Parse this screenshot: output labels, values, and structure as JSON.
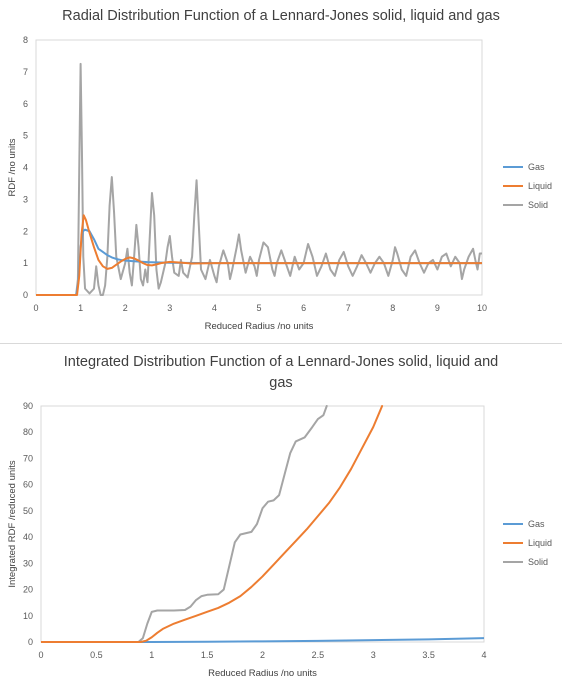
{
  "chart_data": [
    {
      "type": "line",
      "title": "Radial Distribution Function of a Lennard-Jones solid, liquid and gas",
      "xlabel": "Reduced Radius /no units",
      "ylabel": "RDF /no units",
      "xlim": [
        0,
        10
      ],
      "ylim": [
        0,
        8
      ],
      "xticks": [
        0,
        1,
        2,
        3,
        4,
        5,
        6,
        7,
        8,
        9,
        10
      ],
      "yticks": [
        0,
        1,
        2,
        3,
        4,
        5,
        6,
        7,
        8
      ],
      "grid": "horizontal",
      "legend": "right",
      "series": [
        {
          "name": "Gas",
          "color": "#5b9bd5",
          "points": [
            [
              0,
              0
            ],
            [
              0.9,
              0
            ],
            [
              0.95,
              0.4
            ],
            [
              1.0,
              1.5
            ],
            [
              1.05,
              2.0
            ],
            [
              1.1,
              2.05
            ],
            [
              1.2,
              2.0
            ],
            [
              1.3,
              1.75
            ],
            [
              1.4,
              1.45
            ],
            [
              1.5,
              1.35
            ],
            [
              1.6,
              1.25
            ],
            [
              1.7,
              1.18
            ],
            [
              1.8,
              1.13
            ],
            [
              1.9,
              1.1
            ],
            [
              2.0,
              1.08
            ],
            [
              2.2,
              1.06
            ],
            [
              2.5,
              1.03
            ],
            [
              3.0,
              1.01
            ],
            [
              4.0,
              1.0
            ],
            [
              5.0,
              1.0
            ],
            [
              6.0,
              1.0
            ],
            [
              7.0,
              1.0
            ],
            [
              8.0,
              1.0
            ],
            [
              9.0,
              1.0
            ],
            [
              10.0,
              1.0
            ]
          ]
        },
        {
          "name": "Liquid",
          "color": "#ed7d31",
          "points": [
            [
              0,
              0
            ],
            [
              0.92,
              0
            ],
            [
              0.97,
              0.6
            ],
            [
              1.02,
              1.9
            ],
            [
              1.07,
              2.5
            ],
            [
              1.12,
              2.35
            ],
            [
              1.2,
              1.95
            ],
            [
              1.3,
              1.5
            ],
            [
              1.4,
              1.1
            ],
            [
              1.5,
              0.9
            ],
            [
              1.6,
              0.82
            ],
            [
              1.7,
              0.85
            ],
            [
              1.8,
              0.95
            ],
            [
              1.9,
              1.05
            ],
            [
              2.0,
              1.13
            ],
            [
              2.1,
              1.18
            ],
            [
              2.2,
              1.15
            ],
            [
              2.3,
              1.08
            ],
            [
              2.4,
              1.0
            ],
            [
              2.5,
              0.94
            ],
            [
              2.6,
              0.93
            ],
            [
              2.7,
              0.96
            ],
            [
              2.8,
              1.0
            ],
            [
              3.0,
              1.04
            ],
            [
              3.2,
              1.02
            ],
            [
              3.5,
              0.99
            ],
            [
              4.0,
              1.0
            ],
            [
              5.0,
              1.0
            ],
            [
              6.0,
              1.0
            ],
            [
              7.0,
              1.0
            ],
            [
              8.0,
              1.0
            ],
            [
              9.0,
              1.0
            ],
            [
              10.0,
              1.0
            ]
          ]
        },
        {
          "name": "Solid",
          "color": "#a5a5a5",
          "points": [
            [
              0,
              0
            ],
            [
              0.9,
              0
            ],
            [
              0.94,
              0.5
            ],
            [
              0.97,
              4.0
            ],
            [
              1.0,
              7.25
            ],
            [
              1.03,
              4.5
            ],
            [
              1.06,
              1.2
            ],
            [
              1.1,
              0.2
            ],
            [
              1.2,
              0.05
            ],
            [
              1.3,
              0.2
            ],
            [
              1.35,
              0.9
            ],
            [
              1.4,
              0.3
            ],
            [
              1.45,
              0.0
            ],
            [
              1.5,
              0.0
            ],
            [
              1.55,
              0.3
            ],
            [
              1.6,
              1.2
            ],
            [
              1.65,
              2.8
            ],
            [
              1.7,
              3.7
            ],
            [
              1.75,
              2.6
            ],
            [
              1.8,
              1.2
            ],
            [
              1.9,
              0.5
            ],
            [
              2.0,
              1.0
            ],
            [
              2.05,
              1.45
            ],
            [
              2.1,
              0.7
            ],
            [
              2.15,
              0.3
            ],
            [
              2.2,
              1.2
            ],
            [
              2.25,
              2.2
            ],
            [
              2.3,
              1.5
            ],
            [
              2.35,
              0.5
            ],
            [
              2.4,
              0.3
            ],
            [
              2.45,
              0.8
            ],
            [
              2.5,
              0.4
            ],
            [
              2.55,
              1.8
            ],
            [
              2.6,
              3.2
            ],
            [
              2.65,
              2.5
            ],
            [
              2.7,
              0.8
            ],
            [
              2.75,
              0.2
            ],
            [
              2.8,
              0.4
            ],
            [
              2.9,
              1.0
            ],
            [
              2.95,
              1.5
            ],
            [
              3.0,
              1.85
            ],
            [
              3.05,
              1.2
            ],
            [
              3.1,
              0.7
            ],
            [
              3.2,
              0.6
            ],
            [
              3.25,
              1.1
            ],
            [
              3.3,
              0.7
            ],
            [
              3.4,
              0.55
            ],
            [
              3.5,
              1.2
            ],
            [
              3.55,
              2.5
            ],
            [
              3.6,
              3.6
            ],
            [
              3.65,
              2.2
            ],
            [
              3.7,
              0.8
            ],
            [
              3.8,
              0.5
            ],
            [
              3.9,
              1.1
            ],
            [
              4.0,
              0.6
            ],
            [
              4.05,
              0.4
            ],
            [
              4.1,
              0.9
            ],
            [
              4.2,
              1.4
            ],
            [
              4.3,
              1.0
            ],
            [
              4.35,
              0.5
            ],
            [
              4.4,
              0.8
            ],
            [
              4.5,
              1.5
            ],
            [
              4.55,
              1.9
            ],
            [
              4.6,
              1.4
            ],
            [
              4.7,
              0.7
            ],
            [
              4.8,
              1.2
            ],
            [
              4.9,
              0.9
            ],
            [
              4.95,
              0.6
            ],
            [
              5.0,
              1.1
            ],
            [
              5.1,
              1.65
            ],
            [
              5.2,
              1.5
            ],
            [
              5.3,
              0.8
            ],
            [
              5.35,
              0.6
            ],
            [
              5.4,
              1.0
            ],
            [
              5.5,
              1.4
            ],
            [
              5.6,
              1.0
            ],
            [
              5.7,
              0.6
            ],
            [
              5.8,
              1.2
            ],
            [
              5.9,
              0.8
            ],
            [
              6.0,
              1.0
            ],
            [
              6.05,
              1.3
            ],
            [
              6.1,
              1.6
            ],
            [
              6.2,
              1.2
            ],
            [
              6.3,
              0.6
            ],
            [
              6.4,
              0.9
            ],
            [
              6.5,
              1.3
            ],
            [
              6.6,
              0.8
            ],
            [
              6.7,
              0.6
            ],
            [
              6.8,
              1.1
            ],
            [
              6.9,
              1.35
            ],
            [
              7.0,
              0.9
            ],
            [
              7.1,
              0.6
            ],
            [
              7.2,
              0.9
            ],
            [
              7.3,
              1.25
            ],
            [
              7.4,
              1.0
            ],
            [
              7.5,
              0.7
            ],
            [
              7.6,
              1.0
            ],
            [
              7.7,
              1.2
            ],
            [
              7.8,
              1.0
            ],
            [
              7.9,
              0.6
            ],
            [
              8.0,
              1.1
            ],
            [
              8.05,
              1.5
            ],
            [
              8.1,
              1.3
            ],
            [
              8.2,
              0.8
            ],
            [
              8.3,
              0.6
            ],
            [
              8.4,
              1.2
            ],
            [
              8.5,
              1.4
            ],
            [
              8.6,
              1.0
            ],
            [
              8.7,
              0.7
            ],
            [
              8.8,
              1.0
            ],
            [
              8.9,
              1.1
            ],
            [
              9.0,
              0.8
            ],
            [
              9.1,
              1.2
            ],
            [
              9.2,
              1.3
            ],
            [
              9.3,
              0.9
            ],
            [
              9.4,
              1.2
            ],
            [
              9.5,
              1.0
            ],
            [
              9.55,
              0.5
            ],
            [
              9.6,
              0.8
            ],
            [
              9.7,
              1.2
            ],
            [
              9.8,
              1.45
            ],
            [
              9.85,
              1.1
            ],
            [
              9.9,
              0.8
            ],
            [
              9.95,
              1.3
            ],
            [
              10.0,
              1.3
            ]
          ]
        }
      ]
    },
    {
      "type": "line",
      "title": "Integrated Distribution Function of a Lennard-Jones solid, liquid and gas",
      "xlabel": "Reduced Radius /no units",
      "ylabel": "Integrated RDF /reduced units",
      "xlim": [
        0,
        4
      ],
      "ylim": [
        0,
        90
      ],
      "xticks": [
        0,
        0.5,
        1,
        1.5,
        2,
        2.5,
        3,
        3.5,
        4
      ],
      "yticks": [
        0,
        10,
        20,
        30,
        40,
        50,
        60,
        70,
        80,
        90
      ],
      "grid": "horizontal",
      "legend": "right",
      "series": [
        {
          "name": "Gas",
          "color": "#5b9bd5",
          "points": [
            [
              0,
              0
            ],
            [
              1.0,
              0
            ],
            [
              1.5,
              0.1
            ],
            [
              2.0,
              0.25
            ],
            [
              2.5,
              0.45
            ],
            [
              3.0,
              0.7
            ],
            [
              3.5,
              1.0
            ],
            [
              4.0,
              1.5
            ]
          ]
        },
        {
          "name": "Liquid",
          "color": "#ed7d31",
          "points": [
            [
              0,
              0
            ],
            [
              0.9,
              0
            ],
            [
              0.95,
              0.5
            ],
            [
              1.0,
              1.8
            ],
            [
              1.05,
              3.5
            ],
            [
              1.1,
              5.0
            ],
            [
              1.2,
              7.0
            ],
            [
              1.3,
              8.5
            ],
            [
              1.4,
              10.0
            ],
            [
              1.5,
              11.5
            ],
            [
              1.6,
              13.0
            ],
            [
              1.7,
              15.0
            ],
            [
              1.8,
              17.5
            ],
            [
              1.9,
              21.0
            ],
            [
              2.0,
              25.0
            ],
            [
              2.1,
              29.5
            ],
            [
              2.2,
              34.0
            ],
            [
              2.3,
              38.5
            ],
            [
              2.4,
              43.0
            ],
            [
              2.5,
              48.0
            ],
            [
              2.6,
              53.0
            ],
            [
              2.7,
              59.0
            ],
            [
              2.8,
              66.0
            ],
            [
              2.9,
              74.0
            ],
            [
              3.0,
              82.0
            ],
            [
              3.08,
              90.0
            ]
          ]
        },
        {
          "name": "Solid",
          "color": "#a5a5a5",
          "points": [
            [
              0,
              0
            ],
            [
              0.88,
              0
            ],
            [
              0.92,
              1.5
            ],
            [
              0.96,
              7.0
            ],
            [
              1.0,
              11.5
            ],
            [
              1.05,
              12.0
            ],
            [
              1.1,
              12.0
            ],
            [
              1.2,
              12.0
            ],
            [
              1.3,
              12.2
            ],
            [
              1.35,
              13.5
            ],
            [
              1.4,
              16.0
            ],
            [
              1.45,
              17.5
            ],
            [
              1.5,
              18.0
            ],
            [
              1.6,
              18.2
            ],
            [
              1.65,
              20.0
            ],
            [
              1.7,
              29.0
            ],
            [
              1.75,
              38.0
            ],
            [
              1.8,
              41.0
            ],
            [
              1.9,
              42.0
            ],
            [
              1.95,
              45.0
            ],
            [
              2.0,
              51.0
            ],
            [
              2.05,
              53.5
            ],
            [
              2.1,
              54.0
            ],
            [
              2.15,
              56.0
            ],
            [
              2.2,
              64.0
            ],
            [
              2.25,
              72.0
            ],
            [
              2.3,
              76.5
            ],
            [
              2.38,
              78.0
            ],
            [
              2.45,
              82.0
            ],
            [
              2.5,
              85.0
            ],
            [
              2.55,
              86.5
            ],
            [
              2.58,
              90.0
            ]
          ]
        }
      ]
    }
  ]
}
